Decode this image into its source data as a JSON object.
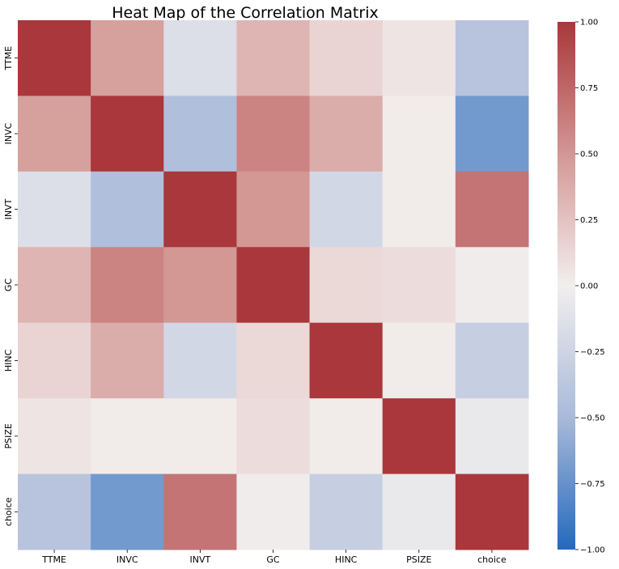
{
  "chart_data": {
    "type": "heatmap",
    "title": "Heat Map of the Correlation Matrix",
    "x_labels": [
      "TTME",
      "INVC",
      "INVT",
      "GC",
      "HINC",
      "PSIZE",
      "choice"
    ],
    "y_labels": [
      "TTME",
      "INVC",
      "INVT",
      "GC",
      "HINC",
      "PSIZE",
      "choice"
    ],
    "matrix": [
      [
        1.0,
        0.45,
        -0.15,
        0.33,
        0.15,
        0.06,
        -0.4
      ],
      [
        0.45,
        1.0,
        -0.45,
        0.6,
        0.38,
        0.02,
        -0.7
      ],
      [
        -0.15,
        -0.45,
        1.0,
        0.5,
        -0.22,
        0.02,
        0.68
      ],
      [
        0.33,
        0.6,
        0.5,
        1.0,
        0.12,
        0.1,
        0.01
      ],
      [
        0.15,
        0.38,
        -0.22,
        0.12,
        1.0,
        0.02,
        -0.3
      ],
      [
        0.06,
        0.02,
        0.02,
        0.1,
        0.02,
        1.0,
        -0.06
      ],
      [
        -0.4,
        -0.7,
        0.68,
        0.01,
        -0.3,
        -0.06,
        1.0
      ]
    ],
    "colorbar": {
      "min": -1.0,
      "max": 1.0,
      "ticks": [
        1.0,
        0.75,
        0.5,
        0.25,
        0.0,
        -0.25,
        -0.5,
        -0.75,
        -1.0
      ],
      "tick_labels": [
        "1.00",
        "0.75",
        "0.50",
        "0.25",
        "0.00",
        "−0.25",
        "−0.50",
        "−0.75",
        "−1.00"
      ]
    },
    "colormap": {
      "name": "vlag",
      "stops": [
        [
          -1.0,
          "#2369bd"
        ],
        [
          -0.5,
          "#a9bad9"
        ],
        [
          0.0,
          "#f2eeee"
        ],
        [
          0.5,
          "#d39794"
        ],
        [
          1.0,
          "#a9373b"
        ]
      ]
    },
    "grid": false,
    "legend_placement": "right"
  }
}
